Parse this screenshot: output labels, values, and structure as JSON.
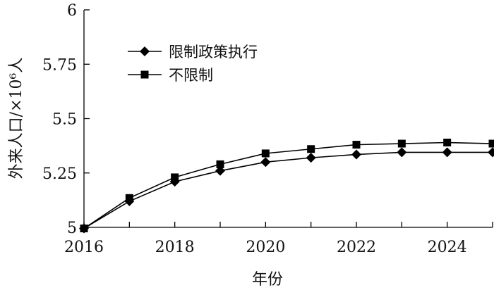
{
  "chart_data": {
    "type": "line",
    "xlabel": "年份",
    "ylabel": "外来人口/×10⁶人",
    "xlim": [
      2016,
      2025
    ],
    "ylim": [
      5,
      6
    ],
    "x_ticks": [
      2016,
      2018,
      2020,
      2022,
      2024
    ],
    "x_tick_labels": [
      "2016",
      "2018",
      "2020",
      "2022",
      "2024"
    ],
    "y_ticks": [
      5,
      5.25,
      5.5,
      5.75,
      6
    ],
    "y_tick_labels": [
      "5",
      "5.25",
      "5.5",
      "5.75",
      "6"
    ],
    "grid": false,
    "legend_position": "top-left",
    "x": [
      2016,
      2017,
      2018,
      2019,
      2020,
      2021,
      2022,
      2023,
      2024,
      2025
    ],
    "series": [
      {
        "name": "限制政策执行",
        "marker": "diamond",
        "color": "#000000",
        "values": [
          4.995,
          5.12,
          5.21,
          5.26,
          5.3,
          5.32,
          5.335,
          5.345,
          5.345,
          5.345
        ]
      },
      {
        "name": "不限制",
        "marker": "square",
        "color": "#000000",
        "values": [
          4.995,
          5.135,
          5.23,
          5.29,
          5.34,
          5.36,
          5.38,
          5.385,
          5.39,
          5.385
        ]
      }
    ]
  }
}
